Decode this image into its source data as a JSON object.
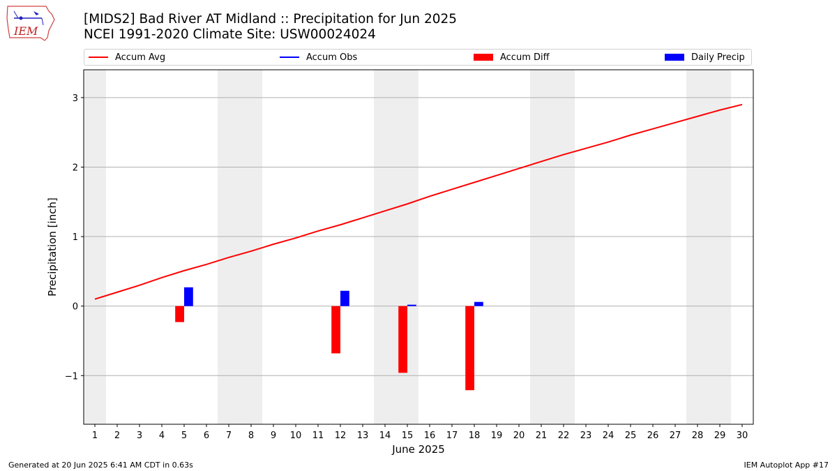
{
  "header": {
    "title_line1": "[MIDS2] Bad River  AT Midland :: Precipitation for Jun 2025",
    "title_line2": "NCEI 1991-2020 Climate Site: USW00024024"
  },
  "logo": {
    "text": "IEM"
  },
  "legend": {
    "position": "top",
    "items": [
      {
        "label": "Accum Avg",
        "kind": "line",
        "color": "#ff0000"
      },
      {
        "label": "Accum Obs",
        "kind": "line",
        "color": "#0000ff"
      },
      {
        "label": "Accum Diff",
        "kind": "bar",
        "color": "#ff0000"
      },
      {
        "label": "Daily Precip",
        "kind": "bar",
        "color": "#0000ff"
      }
    ]
  },
  "chart_data": {
    "type": "bar",
    "xlabel": "June 2025",
    "ylabel": "Precipitation [inch]",
    "xlim": [
      0.5,
      30.5
    ],
    "ylim": [
      -1.7,
      3.4
    ],
    "yticks": [
      -1,
      0,
      1,
      2,
      3
    ],
    "ytick_labels": [
      "−1",
      "0",
      "1",
      "2",
      "3"
    ],
    "x_ticks": [
      1,
      2,
      3,
      4,
      5,
      6,
      7,
      8,
      9,
      10,
      11,
      12,
      13,
      14,
      15,
      16,
      17,
      18,
      19,
      20,
      21,
      22,
      23,
      24,
      25,
      26,
      27,
      28,
      29,
      30
    ],
    "grid": "horizontal",
    "weekend_shading": [
      [
        0.5,
        1.5
      ],
      [
        6.5,
        8.5
      ],
      [
        13.5,
        15.5
      ],
      [
        20.5,
        22.5
      ],
      [
        27.5,
        29.5
      ]
    ],
    "shade_color": "#eeeeee",
    "accum_avg": {
      "name": "Accum Avg",
      "color": "#ff0000",
      "x": [
        1,
        2,
        3,
        4,
        5,
        6,
        7,
        8,
        9,
        10,
        11,
        12,
        13,
        14,
        15,
        16,
        17,
        18,
        19,
        20,
        21,
        22,
        23,
        24,
        25,
        26,
        27,
        28,
        29,
        30
      ],
      "values": [
        0.1,
        0.2,
        0.3,
        0.41,
        0.51,
        0.6,
        0.7,
        0.79,
        0.89,
        0.98,
        1.08,
        1.17,
        1.27,
        1.37,
        1.47,
        1.58,
        1.68,
        1.78,
        1.88,
        1.98,
        2.08,
        2.18,
        2.27,
        2.36,
        2.46,
        2.55,
        2.64,
        2.73,
        2.82,
        2.9
      ]
    },
    "accum_diff": {
      "name": "Accum Diff",
      "color": "#ff0000",
      "x": [
        5,
        12,
        15,
        18
      ],
      "values": [
        -0.23,
        -0.68,
        -0.96,
        -1.21
      ]
    },
    "daily_precip": {
      "name": "Daily Precip",
      "color": "#0000ff",
      "x": [
        5,
        12,
        15,
        18
      ],
      "values": [
        0.27,
        0.22,
        0.02,
        0.06
      ]
    }
  },
  "footer": {
    "left": "Generated at 20 Jun 2025 6:41 AM CDT in 0.63s",
    "right": "IEM Autoplot App #17"
  }
}
